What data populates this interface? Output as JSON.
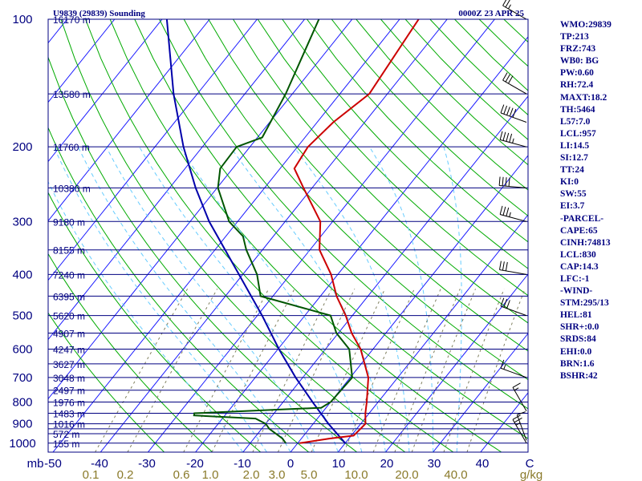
{
  "header": {
    "station": "U9839 (29839) Sounding",
    "time": "0000Z 23 APR 25"
  },
  "chart_data": {
    "type": "skew-t",
    "pressure_ticks": [
      100,
      200,
      300,
      400,
      500,
      600,
      700,
      800,
      900,
      1000
    ],
    "isobars": [
      100,
      150,
      200,
      250,
      300,
      350,
      400,
      450,
      500,
      550,
      600,
      650,
      700,
      750,
      800,
      850,
      900,
      925,
      950,
      1000
    ],
    "height_labels": [
      {
        "p": 100,
        "label": "16170 m"
      },
      {
        "p": 150,
        "label": "13580 m"
      },
      {
        "p": 200,
        "label": "11760 m"
      },
      {
        "p": 250,
        "label": "10380 m"
      },
      {
        "p": 300,
        "label": "9180 m"
      },
      {
        "p": 350,
        "label": "8155 m"
      },
      {
        "p": 400,
        "label": "7240 m"
      },
      {
        "p": 450,
        "label": "6395 m"
      },
      {
        "p": 500,
        "label": "5620 m"
      },
      {
        "p": 550,
        "label": "4907 m"
      },
      {
        "p": 600,
        "label": "4247 m"
      },
      {
        "p": 650,
        "label": "3627 m"
      },
      {
        "p": 700,
        "label": "3048 m"
      },
      {
        "p": 750,
        "label": "2497 m"
      },
      {
        "p": 800,
        "label": "1976 m"
      },
      {
        "p": 850,
        "label": "1483 m"
      },
      {
        "p": 900,
        "label": "1016 m"
      },
      {
        "p": 950,
        "label": "572 m"
      },
      {
        "p": 1000,
        "label": "155 m"
      }
    ],
    "temp_axis_label": "mb",
    "temp_ticks": [
      "-50",
      "-40",
      "-30",
      "-20",
      "-10",
      "0",
      "10",
      "20",
      "30",
      "40",
      "C"
    ],
    "mixing_ratio_ticks": [
      "0.1",
      "0.2",
      "0.6",
      "1.0",
      "2.0",
      "3.0",
      "5.0",
      "10.0",
      "20.0",
      "40.0",
      "g/kg"
    ],
    "temperature": [
      {
        "p": 1000,
        "t": 0.4
      },
      {
        "p": 975,
        "t": 6.0
      },
      {
        "p": 960,
        "t": 10.5
      },
      {
        "p": 925,
        "t": 10.8
      },
      {
        "p": 900,
        "t": 11.0
      },
      {
        "p": 850,
        "t": 9.2
      },
      {
        "p": 800,
        "t": 7.6
      },
      {
        "p": 700,
        "t": 3.8
      },
      {
        "p": 600,
        "t": -2.6
      },
      {
        "p": 550,
        "t": -7.2
      },
      {
        "p": 500,
        "t": -11.4
      },
      {
        "p": 450,
        "t": -16.6
      },
      {
        "p": 400,
        "t": -21.4
      },
      {
        "p": 350,
        "t": -28.0
      },
      {
        "p": 300,
        "t": -32.6
      },
      {
        "p": 250,
        "t": -41.8
      },
      {
        "p": 225,
        "t": -47.0
      },
      {
        "p": 200,
        "t": -47.8
      },
      {
        "p": 175,
        "t": -46.6
      },
      {
        "p": 150,
        "t": -43.8
      },
      {
        "p": 100,
        "t": -46.0
      }
    ],
    "dewpoint": [
      {
        "p": 1000,
        "td": -2.5
      },
      {
        "p": 975,
        "td": -4.0
      },
      {
        "p": 925,
        "td": -8.4
      },
      {
        "p": 900,
        "td": -10.0
      },
      {
        "p": 875,
        "td": -13.0
      },
      {
        "p": 860,
        "td": -26.5
      },
      {
        "p": 850,
        "td": -26.8
      },
      {
        "p": 825,
        "td": -1.0
      },
      {
        "p": 800,
        "td": 0.0
      },
      {
        "p": 700,
        "td": 0.4
      },
      {
        "p": 600,
        "td": -5.0
      },
      {
        "p": 550,
        "td": -10.4
      },
      {
        "p": 500,
        "td": -14.6
      },
      {
        "p": 450,
        "td": -32.6
      },
      {
        "p": 400,
        "td": -37.0
      },
      {
        "p": 350,
        "td": -43.4
      },
      {
        "p": 325,
        "td": -46.4
      },
      {
        "p": 300,
        "td": -51.8
      },
      {
        "p": 250,
        "td": -59.8
      },
      {
        "p": 225,
        "td": -62.6
      },
      {
        "p": 200,
        "td": -62.8
      },
      {
        "p": 190,
        "td": -59.0
      },
      {
        "p": 150,
        "td": -61.4
      },
      {
        "p": 100,
        "td": -67.0
      }
    ],
    "parcel": [
      {
        "p": 1000,
        "t": 10.0
      },
      {
        "p": 900,
        "t": 3.2
      },
      {
        "p": 800,
        "t": -3.8
      },
      {
        "p": 700,
        "t": -11.5
      },
      {
        "p": 600,
        "t": -19.8
      },
      {
        "p": 500,
        "t": -29.0
      },
      {
        "p": 400,
        "t": -40.8
      },
      {
        "p": 300,
        "t": -56.0
      },
      {
        "p": 250,
        "t": -64.5
      },
      {
        "p": 200,
        "t": -74.0
      },
      {
        "p": 150,
        "t": -85.0
      },
      {
        "p": 100,
        "t": -99.0
      }
    ],
    "wind_barbs": [
      {
        "p": 1000,
        "dir": 330,
        "spd": 25
      },
      {
        "p": 985,
        "dir": 340,
        "spd": 10
      },
      {
        "p": 840,
        "dir": 330,
        "spd": 15
      },
      {
        "p": 700,
        "dir": 290,
        "spd": 15
      },
      {
        "p": 500,
        "dir": 290,
        "spd": 30
      },
      {
        "p": 400,
        "dir": 280,
        "spd": 30
      },
      {
        "p": 300,
        "dir": 285,
        "spd": 35
      },
      {
        "p": 250,
        "dir": 275,
        "spd": 40
      },
      {
        "p": 200,
        "dir": 285,
        "spd": 45
      },
      {
        "p": 175,
        "dir": 290,
        "spd": 50
      },
      {
        "p": 150,
        "dir": 300,
        "spd": 30
      },
      {
        "p": 100,
        "dir": 300,
        "spd": 25
      }
    ],
    "colors": {
      "isobar": "#000080",
      "isotherm": "#1515ff",
      "dry_adiabat": "#00aa00",
      "moist_adiabat": "#66ccff",
      "mixing_ratio": "#808060",
      "temperature": "#cc0000",
      "dewpoint": "#005500",
      "parcel": "#0000aa",
      "text": "#000080"
    }
  },
  "indices": [
    "WMO:29839",
    "TP:213",
    "FRZ:743",
    "WB0: BG",
    "PW:0.60",
    "RH:72.4",
    "MAXT:18.2",
    "TH:5464",
    "L57:7.0",
    "LCL:957",
    "LI:14.5",
    "SI:12.7",
    "TT:24",
    "KI:0",
    "SW:55",
    "EI:3.7",
    "-PARCEL-",
    "CAPE:65",
    "CINH:74813",
    "LCL:830",
    "CAP:14.3",
    "LFC:-1",
    "-WIND-",
    "STM:295/13",
    "HEL:81",
    "SHR+:0.0",
    "SRDS:84",
    "EHI:0.0",
    "BRN:1.6",
    "BSHR:42"
  ]
}
